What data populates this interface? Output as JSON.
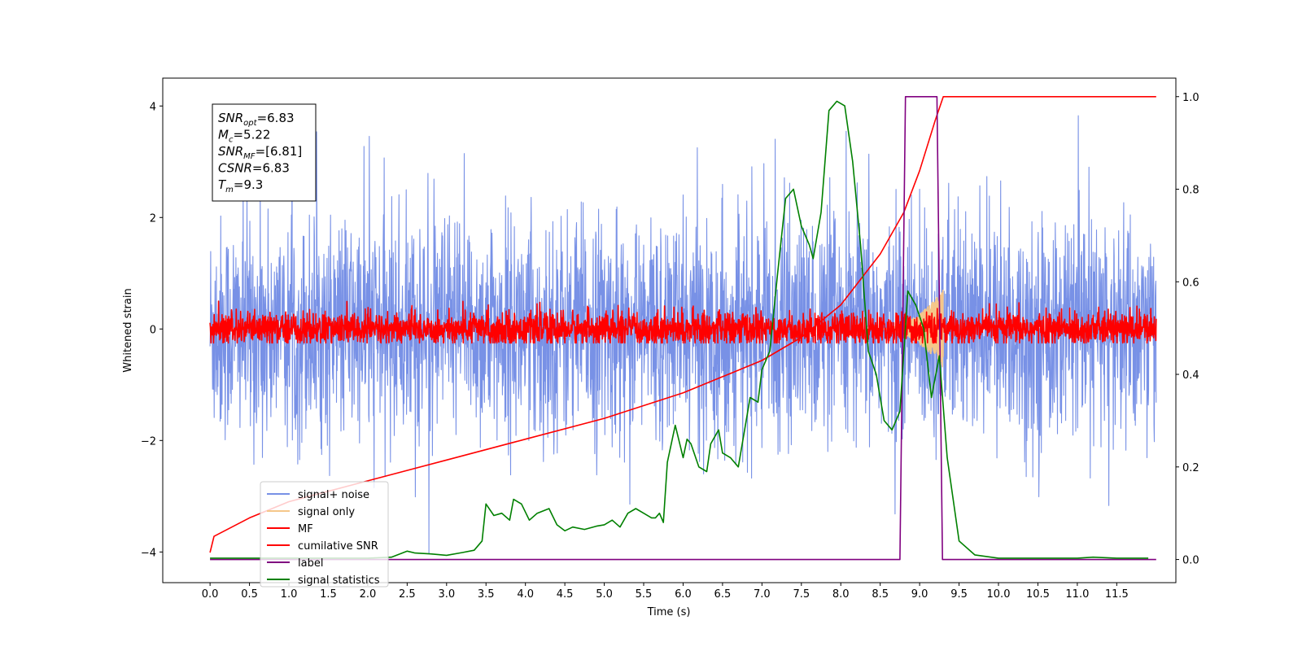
{
  "chart_data": {
    "type": "line",
    "xlabel": "Time (s)",
    "ylabel": "Whitened strain",
    "xlim": [
      -0.6,
      12.25
    ],
    "ylim": [
      -4.55,
      4.5
    ],
    "y2lim": [
      -0.05,
      1.04
    ],
    "x_ticks": [
      0.0,
      0.5,
      1.0,
      1.5,
      2.0,
      2.5,
      3.0,
      3.5,
      4.0,
      4.5,
      5.0,
      5.5,
      6.0,
      6.5,
      7.0,
      7.5,
      8.0,
      8.5,
      9.0,
      9.5,
      10.0,
      10.5,
      11.0,
      11.5
    ],
    "x_tick_labels": [
      "0.0",
      "0.5",
      "1.0",
      "1.5",
      "2.0",
      "2.5",
      "3.0",
      "3.5",
      "4.0",
      "4.5",
      "5.0",
      "5.5",
      "6.0",
      "6.5",
      "7.0",
      "7.5",
      "8.0",
      "8.5",
      "9.0",
      "9.5",
      "10.0",
      "10.5",
      "11.0",
      "11.5"
    ],
    "y_ticks": [
      -4,
      -2,
      0,
      2,
      4
    ],
    "y_tick_labels": [
      "−4",
      "−2",
      "0",
      "2",
      "4"
    ],
    "y2_ticks": [
      0.0,
      0.2,
      0.4,
      0.6,
      0.8,
      1.0
    ],
    "y2_tick_labels": [
      "0.0",
      "0.2",
      "0.4",
      "0.6",
      "0.8",
      "1.0"
    ],
    "grid": false,
    "legend_position": "lower-left",
    "annotation": {
      "lines": [
        {
          "base": "SNR",
          "sub": "opt",
          "rest": "=6.83"
        },
        {
          "base": "M",
          "sub": "c",
          "rest": "=5.22"
        },
        {
          "base": "SNR",
          "sub": "MF",
          "rest": "=[6.81]"
        },
        {
          "base": "CSNR",
          "sub": "",
          "rest": "=6.83"
        },
        {
          "base": "T",
          "sub": "m",
          "rest": "=9.3"
        }
      ]
    },
    "series": [
      {
        "name": "signal+ noise",
        "axis": "left",
        "color": "#7891e6",
        "kind": "noise",
        "x_range": [
          0.0,
          12.0
        ],
        "amplitude": 1.0,
        "peak_range": [
          -4.1,
          4.1
        ]
      },
      {
        "name": "signal only",
        "axis": "left",
        "color": "#f5c78a",
        "kind": "chirp",
        "x_range": [
          8.5,
          9.3
        ],
        "peak_amplitude": 0.7
      },
      {
        "name": "MF",
        "axis": "left",
        "color": "#ff0000",
        "kind": "noise",
        "x_range": [
          0.0,
          12.0
        ],
        "amplitude": 0.15,
        "peak_range": [
          -0.25,
          0.5
        ]
      },
      {
        "name": "cumilative SNR",
        "axis": "right",
        "color": "#ff0000",
        "x": [
          0.0,
          0.05,
          0.5,
          1.0,
          2.0,
          3.0,
          4.0,
          5.0,
          6.0,
          7.0,
          7.5,
          8.0,
          8.5,
          8.8,
          9.0,
          9.2,
          9.3,
          12.0
        ],
        "y": [
          0.015,
          0.05,
          0.09,
          0.125,
          0.17,
          0.215,
          0.26,
          0.305,
          0.36,
          0.43,
          0.48,
          0.55,
          0.66,
          0.75,
          0.84,
          0.95,
          1.0,
          1.0
        ]
      },
      {
        "name": "label",
        "axis": "right",
        "color": "#800080",
        "x": [
          0.0,
          8.75,
          8.82,
          9.22,
          9.29,
          12.0
        ],
        "y": [
          0.0,
          0.0,
          1.0,
          1.0,
          0.0,
          0.0
        ]
      },
      {
        "name": "signal statistics",
        "axis": "right",
        "color": "#008000",
        "x": [
          0.0,
          0.5,
          1.0,
          1.5,
          2.0,
          2.3,
          2.5,
          2.6,
          2.8,
          3.0,
          3.2,
          3.35,
          3.45,
          3.5,
          3.6,
          3.7,
          3.8,
          3.85,
          3.95,
          4.05,
          4.15,
          4.3,
          4.4,
          4.5,
          4.6,
          4.75,
          4.9,
          5.0,
          5.1,
          5.2,
          5.3,
          5.4,
          5.5,
          5.6,
          5.65,
          5.7,
          5.75,
          5.8,
          5.9,
          6.0,
          6.05,
          6.1,
          6.2,
          6.3,
          6.35,
          6.45,
          6.5,
          6.6,
          6.7,
          6.85,
          6.95,
          7.0,
          7.1,
          7.2,
          7.3,
          7.4,
          7.5,
          7.6,
          7.65,
          7.75,
          7.85,
          7.95,
          8.05,
          8.15,
          8.25,
          8.35,
          8.45,
          8.55,
          8.65,
          8.75,
          8.85,
          8.95,
          9.05,
          9.15,
          9.25,
          9.35,
          9.5,
          9.7,
          10.0,
          10.5,
          11.0,
          11.2,
          11.5,
          11.9
        ],
        "y": [
          0.003,
          0.003,
          0.003,
          0.003,
          0.003,
          0.005,
          0.018,
          0.014,
          0.012,
          0.009,
          0.015,
          0.02,
          0.04,
          0.12,
          0.095,
          0.1,
          0.085,
          0.13,
          0.12,
          0.085,
          0.1,
          0.11,
          0.075,
          0.062,
          0.07,
          0.065,
          0.072,
          0.075,
          0.085,
          0.07,
          0.1,
          0.11,
          0.1,
          0.09,
          0.09,
          0.1,
          0.08,
          0.21,
          0.29,
          0.22,
          0.26,
          0.25,
          0.2,
          0.19,
          0.25,
          0.28,
          0.23,
          0.22,
          0.2,
          0.35,
          0.34,
          0.41,
          0.45,
          0.62,
          0.78,
          0.8,
          0.72,
          0.68,
          0.65,
          0.75,
          0.97,
          0.99,
          0.98,
          0.86,
          0.68,
          0.45,
          0.4,
          0.3,
          0.28,
          0.32,
          0.58,
          0.55,
          0.5,
          0.35,
          0.44,
          0.22,
          0.04,
          0.01,
          0.003,
          0.003,
          0.003,
          0.005,
          0.003,
          0.003
        ]
      }
    ]
  }
}
